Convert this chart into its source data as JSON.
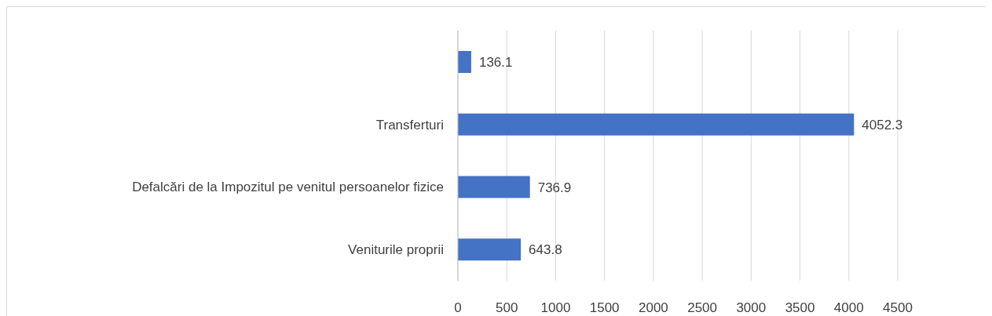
{
  "chart_data": {
    "type": "bar",
    "orientation": "horizontal",
    "categories": [
      null,
      "Transferturi",
      "Defalcări de la Impozitul pe venitul persoanelor fizice",
      "Veniturile proprii"
    ],
    "values": [
      136.1,
      4052.3,
      736.9,
      643.8
    ],
    "color": "#4472c4",
    "xlim": [
      0,
      4500
    ],
    "xticks": [
      0,
      500,
      1000,
      1500,
      2000,
      2500,
      3000,
      3500,
      4000,
      4500
    ],
    "grid": "x",
    "data_labels": true,
    "legend": false
  }
}
